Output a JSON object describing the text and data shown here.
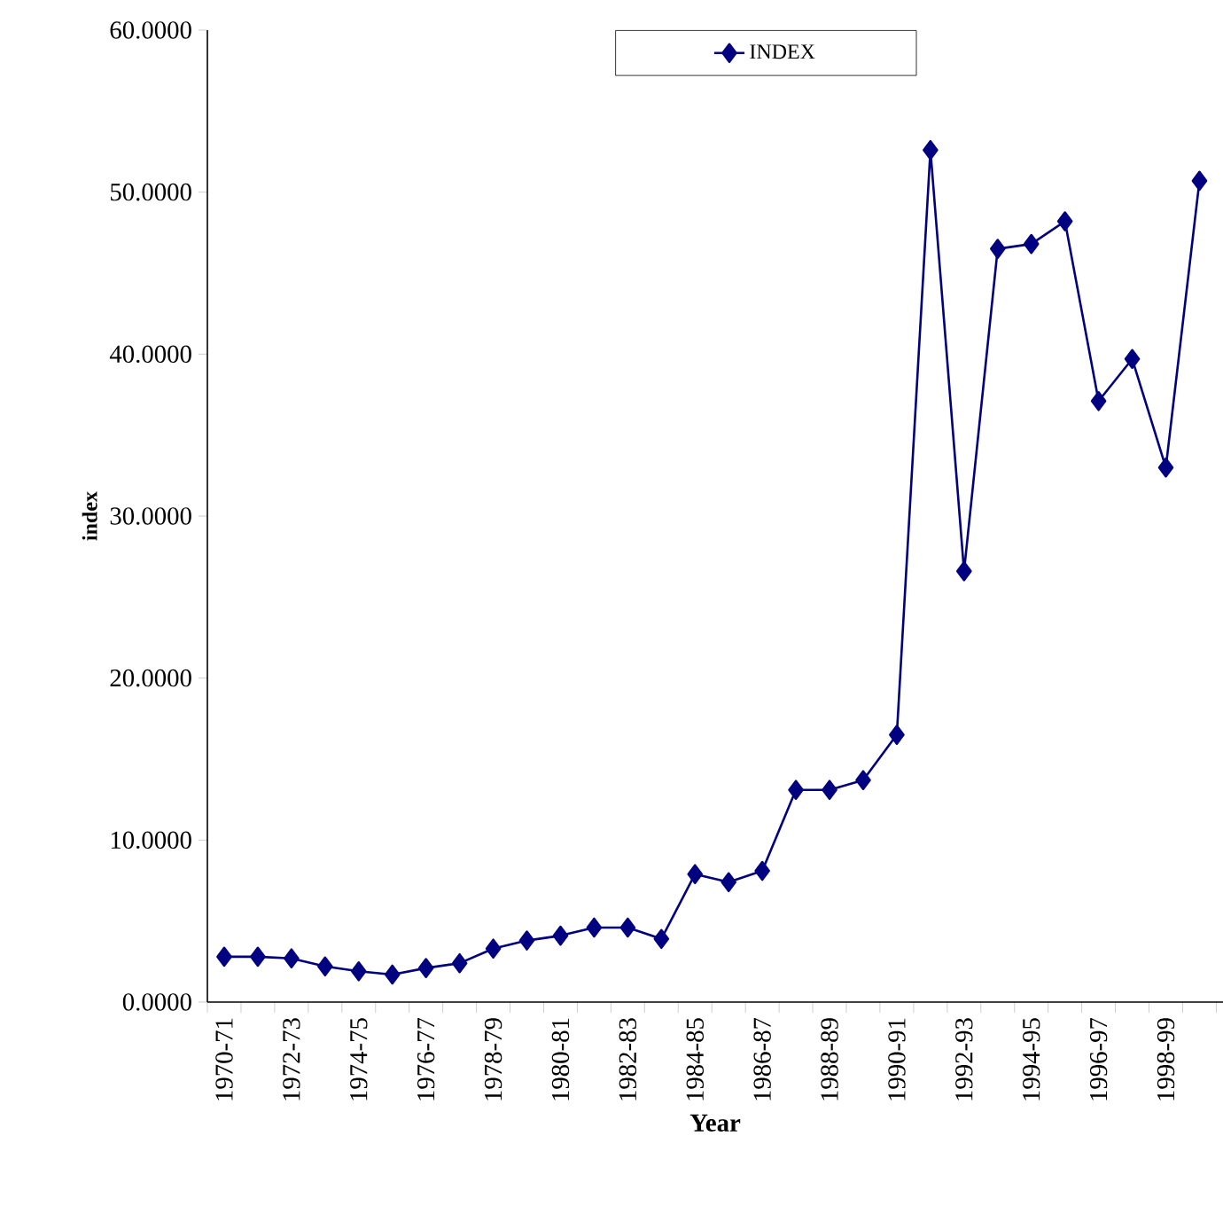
{
  "chart_data": {
    "type": "line",
    "xlabel": "Year",
    "ylabel": "index",
    "categories": [
      "1970-71",
      null,
      "1972-73",
      null,
      "1974-75",
      null,
      "1976-77",
      null,
      "1978-79",
      null,
      "1980-81",
      null,
      "1982-83",
      null,
      "1984-85",
      null,
      "1986-87",
      null,
      "1988-89",
      null,
      "1990-91",
      null,
      "1992-93",
      null,
      "1994-95",
      null,
      "1996-97",
      null,
      "1998-99",
      null
    ],
    "series": [
      {
        "name": "INDEX",
        "color": "#000080",
        "values": [
          2.8,
          2.8,
          2.7,
          2.2,
          1.9,
          1.7,
          2.1,
          2.4,
          3.3,
          3.8,
          4.1,
          4.6,
          4.6,
          3.9,
          7.9,
          7.4,
          8.1,
          13.1,
          13.1,
          13.7,
          16.5,
          52.6,
          26.6,
          46.5,
          46.8,
          48.2,
          37.1,
          39.7,
          33.0,
          50.7
        ]
      }
    ],
    "ylim": [
      0,
      60
    ],
    "yticks": [
      {
        "value": 0,
        "label": "0.0000"
      },
      {
        "value": 10,
        "label": "10.0000"
      },
      {
        "value": 20,
        "label": "20.0000"
      },
      {
        "value": 30,
        "label": "30.0000"
      },
      {
        "value": 40,
        "label": "40.0000"
      },
      {
        "value": 50,
        "label": "50.0000"
      },
      {
        "value": 60,
        "label": "60.0000"
      }
    ],
    "legend": "top",
    "marker": "diamond",
    "line_style": "solid",
    "grid": false
  }
}
